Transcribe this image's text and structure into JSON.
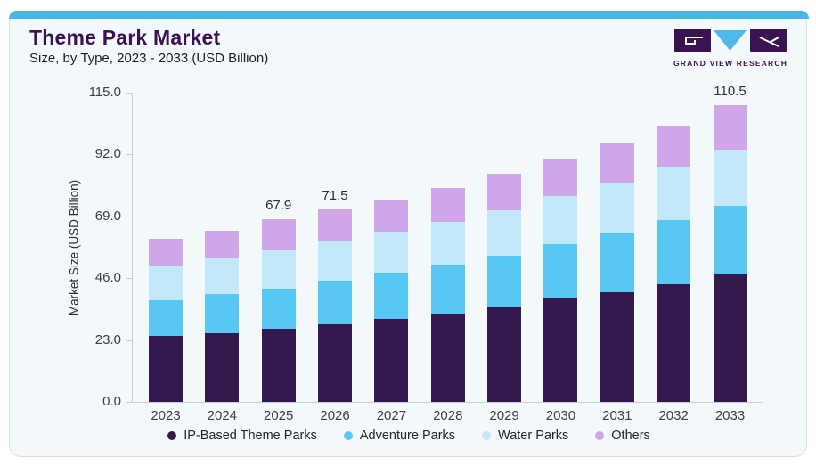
{
  "header": {
    "logo_text": "GRAND VIEW RESEARCH"
  },
  "chart_data": {
    "type": "bar",
    "stacked": true,
    "title": "Theme Park Market",
    "subtitle": "Size, by Type, 2023 - 2033 (USD Billion)",
    "ylabel": "Market Size (USD Billion)",
    "xlabel": "",
    "ylim": [
      0,
      115
    ],
    "yticks": [
      0,
      23,
      46,
      69,
      92,
      115
    ],
    "grid": false,
    "legend_position": "bottom",
    "categories": [
      "2023",
      "2024",
      "2025",
      "2026",
      "2027",
      "2028",
      "2029",
      "2030",
      "2031",
      "2032",
      "2033"
    ],
    "series": [
      {
        "name": "IP-Based Theme Parks",
        "color": "#34194E",
        "values": [
          24.6,
          25.5,
          27.2,
          28.8,
          30.7,
          32.9,
          35.2,
          38.4,
          40.7,
          43.8,
          47.5
        ]
      },
      {
        "name": "Adventure Parks",
        "color": "#58C7F3",
        "values": [
          13.3,
          14.6,
          14.9,
          16.3,
          17.4,
          18.3,
          19.3,
          20.2,
          22.1,
          23.7,
          25.3
        ]
      },
      {
        "name": "Water Parks",
        "color": "#C2E8F9",
        "values": [
          12.5,
          13.3,
          14.4,
          15.0,
          15.3,
          15.8,
          16.7,
          17.9,
          18.6,
          19.9,
          21.0
        ]
      },
      {
        "name": "Others",
        "color": "#D0A6EA",
        "values": [
          10.2,
          10.3,
          11.4,
          11.4,
          11.4,
          12.4,
          13.8,
          13.5,
          14.9,
          15.3,
          16.7
        ]
      }
    ],
    "totals": [
      60.6,
      63.7,
      67.9,
      71.5,
      74.8,
      79.4,
      85.0,
      90.0,
      96.3,
      102.7,
      110.5
    ],
    "data_labels": [
      {
        "category": "2025",
        "text": "67.9"
      },
      {
        "category": "2026",
        "text": "71.5"
      },
      {
        "category": "2033",
        "text": "110.5"
      }
    ]
  },
  "colors": {
    "page_background": "#FFFFFF",
    "card_background": "#F3F8FB",
    "card_border": "#D8DEE6",
    "accent_strip": "#47B7E8",
    "title_text": "#3A1353",
    "subtitle_text": "#1F1F24",
    "axis_line": "#C9CFD7",
    "tick_text": "#3F3F46",
    "label_text": "#2F2F33",
    "legend_text": "#26262B",
    "logo_purple": "#3A1353",
    "logo_blue": "#4FBAEA"
  }
}
